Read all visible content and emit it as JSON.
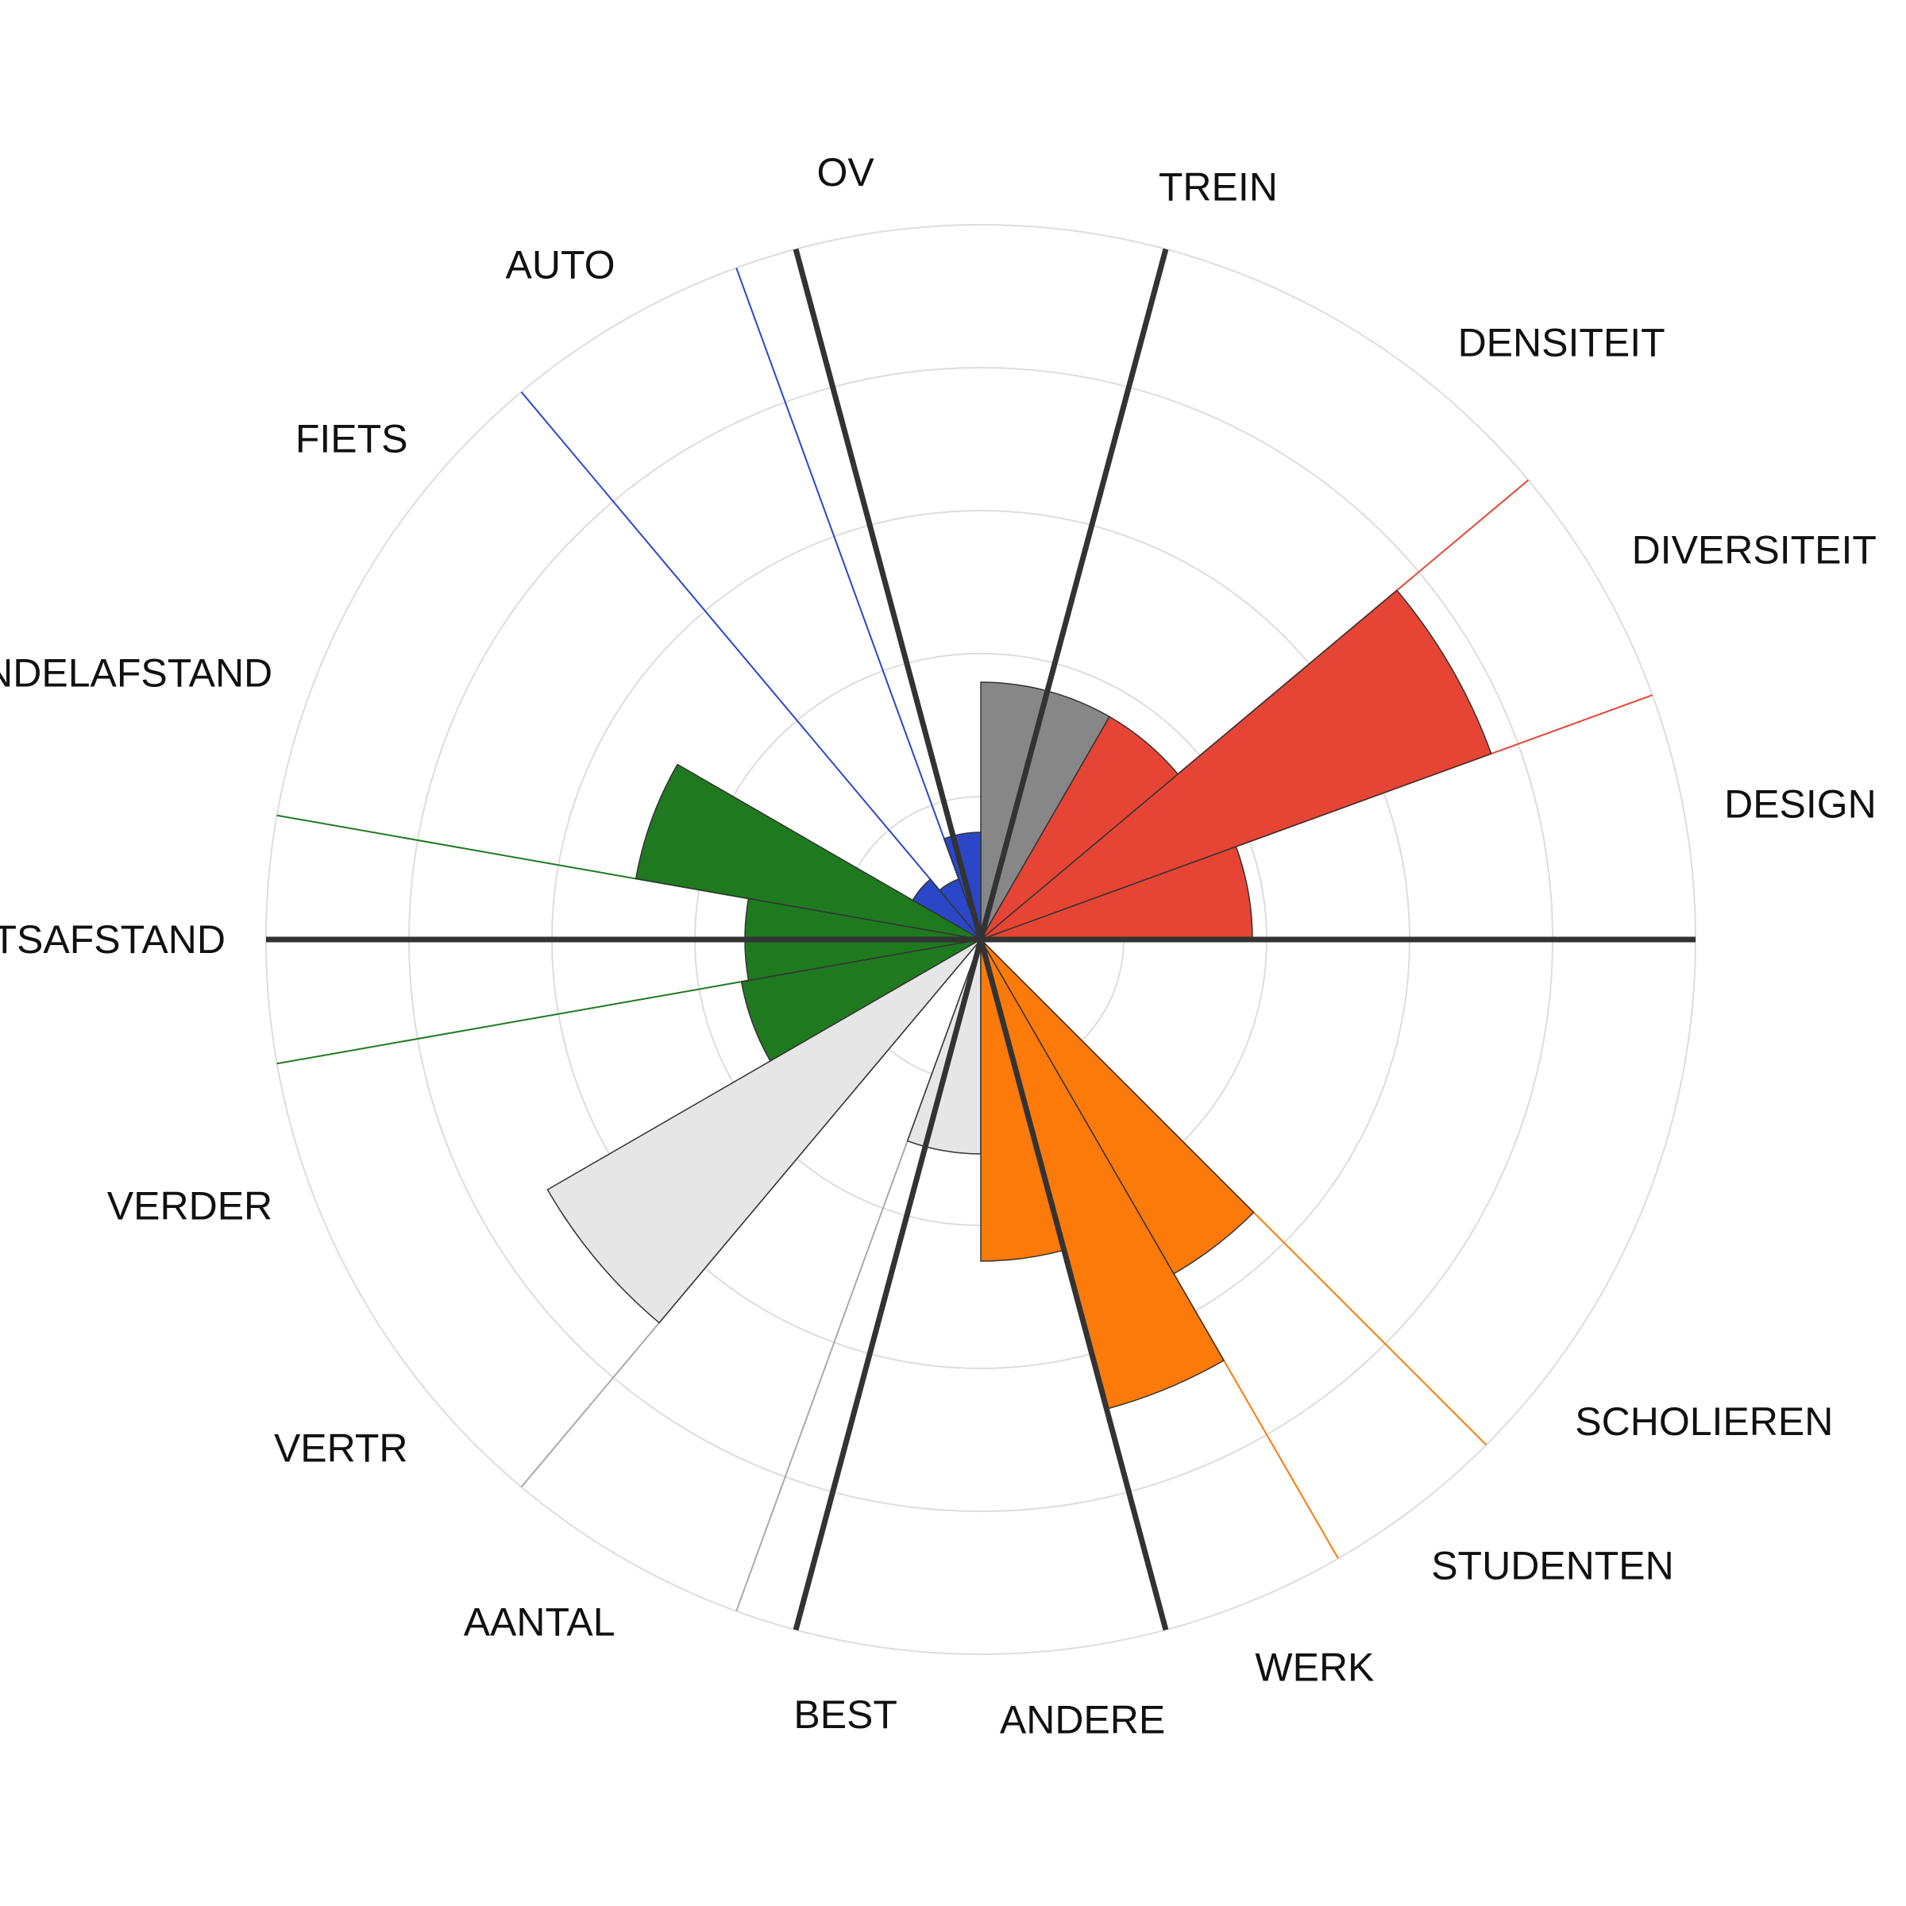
{
  "chart_data": {
    "type": "polar-bar",
    "title": "",
    "value_range": [
      0,
      5
    ],
    "grid": true,
    "grid_rings": 5,
    "groups": [
      {
        "categories": [
          "DESIGN",
          "DIVERSITEIT",
          "DENSITEIT"
        ],
        "color": "#E64535",
        "values": [
          1.9,
          3.8,
          1.8
        ]
      },
      {
        "categories": [
          "TREIN"
        ],
        "color": "#878787",
        "values": [
          1.8
        ]
      },
      {
        "categories": [
          "OV",
          "AUTO",
          "FIETS"
        ],
        "color": "#2B47C8",
        "values": [
          0.75,
          0.45,
          0.55
        ]
      },
      {
        "categories": [
          "WANDELAFSTAND",
          "FIETSAFSTAND",
          "VERDER"
        ],
        "color": "#1F7A1F",
        "values": [
          2.45,
          1.65,
          1.7
        ]
      },
      {
        "categories": [
          "VERTR",
          "AANTAL",
          "BEST"
        ],
        "color": "#E6E6E6",
        "values": [
          3.5,
          0.0,
          1.5
        ]
      },
      {
        "categories": [
          "ANDERE",
          "WERK",
          "STUDENTEN",
          "SCHOLIEREN"
        ],
        "color": "#FB7A0A",
        "values": [
          2.25,
          3.4,
          2.7,
          0.0
        ]
      }
    ]
  }
}
